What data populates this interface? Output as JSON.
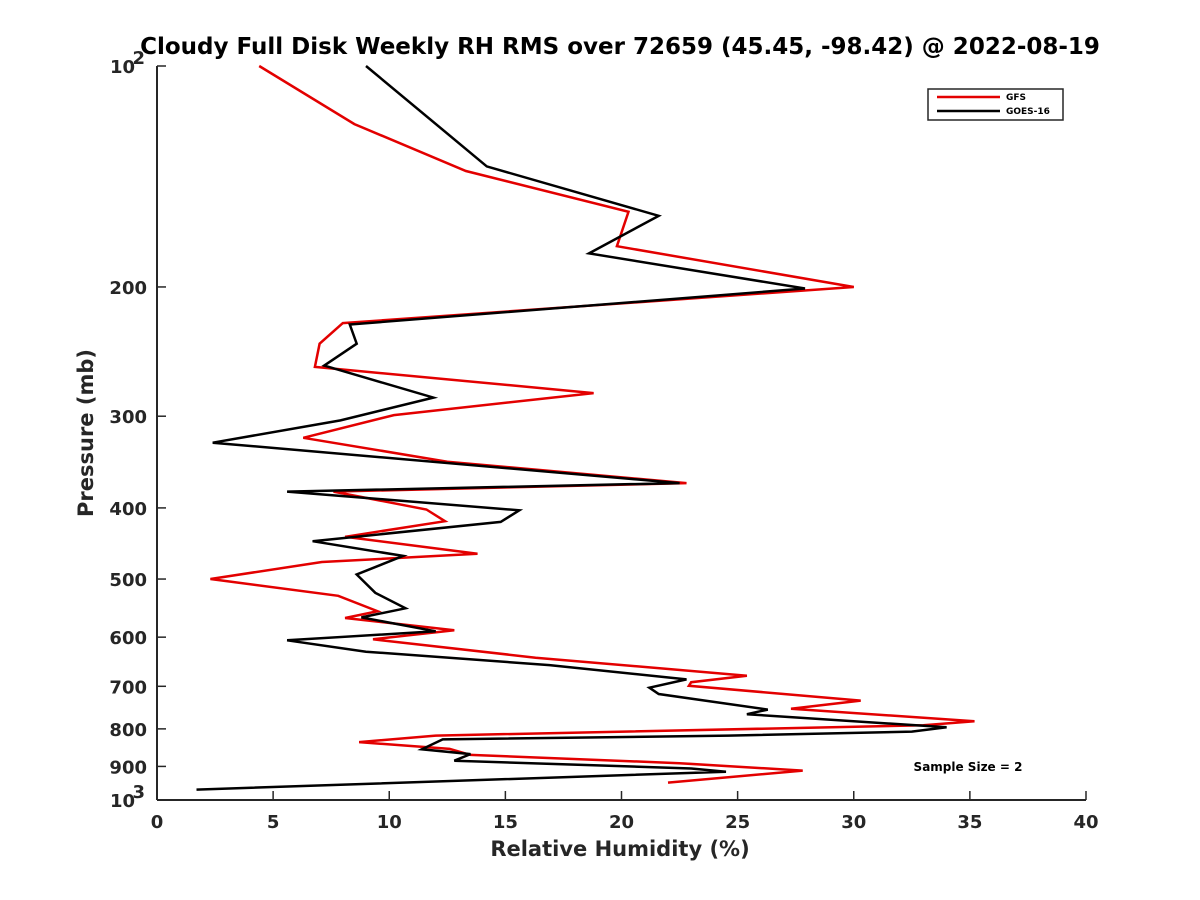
{
  "chart_data": {
    "type": "line",
    "title": "Cloudy Full Disk Weekly RH RMS over 72659 (45.45, -98.42) @ 2022-08-19",
    "xlabel": "Relative Humidity (%)",
    "ylabel": "Pressure (mb)",
    "xlim": [
      0,
      40
    ],
    "ylim": [
      100,
      1000
    ],
    "y_scale": "log",
    "y_reversed": true,
    "x_ticks": [
      "0",
      "5",
      "10",
      "15",
      "20",
      "25",
      "30",
      "35",
      "40"
    ],
    "y_ticks": [
      {
        "value": 100,
        "label": "10",
        "sup": "2"
      },
      {
        "value": 200,
        "label": "200",
        "sup": ""
      },
      {
        "value": 300,
        "label": "300",
        "sup": ""
      },
      {
        "value": 400,
        "label": "400",
        "sup": ""
      },
      {
        "value": 500,
        "label": "500",
        "sup": ""
      },
      {
        "value": 600,
        "label": "600",
        "sup": ""
      },
      {
        "value": 700,
        "label": "700",
        "sup": ""
      },
      {
        "value": 800,
        "label": "800",
        "sup": ""
      },
      {
        "value": 900,
        "label": "900",
        "sup": ""
      },
      {
        "value": 1000,
        "label": "10",
        "sup": "3"
      }
    ],
    "grid": false,
    "legend_position": "top-right",
    "annotation": "Sample Size = 2",
    "series": [
      {
        "name": "GFS",
        "color": "#e30000",
        "points": [
          [
            4.4,
            100
          ],
          [
            8.5,
            120
          ],
          [
            13.3,
            139
          ],
          [
            20.3,
            158
          ],
          [
            19.8,
            176
          ],
          [
            30.0,
            200
          ],
          [
            8.0,
            224
          ],
          [
            7.0,
            239
          ],
          [
            6.8,
            257
          ],
          [
            18.8,
            279
          ],
          [
            10.2,
            299
          ],
          [
            6.3,
            321
          ],
          [
            12.5,
            346
          ],
          [
            22.8,
            370
          ],
          [
            7.6,
            380
          ],
          [
            11.6,
            402
          ],
          [
            12.4,
            417
          ],
          [
            8.1,
            438
          ],
          [
            13.8,
            462
          ],
          [
            7.1,
            474
          ],
          [
            2.3,
            500
          ],
          [
            7.8,
            527
          ],
          [
            9.5,
            553
          ],
          [
            8.1,
            565
          ],
          [
            12.8,
            587
          ],
          [
            9.3,
            604
          ],
          [
            16.3,
            640
          ],
          [
            25.4,
            677
          ],
          [
            23.0,
            691
          ],
          [
            22.9,
            699
          ],
          [
            30.3,
            732
          ],
          [
            27.3,
            751
          ],
          [
            35.2,
            781
          ],
          [
            33.0,
            791
          ],
          [
            12.0,
            817
          ],
          [
            8.7,
            834
          ],
          [
            12.6,
            852
          ],
          [
            13.5,
            868
          ],
          [
            22.5,
            891
          ],
          [
            27.8,
            912
          ],
          [
            22.0,
            947
          ]
        ]
      },
      {
        "name": "GOES-16",
        "color": "#000000",
        "points": [
          [
            9.0,
            100
          ],
          [
            14.2,
            137
          ],
          [
            21.6,
            160
          ],
          [
            18.6,
            180
          ],
          [
            27.9,
            201
          ],
          [
            8.3,
            225
          ],
          [
            8.6,
            239
          ],
          [
            7.2,
            256
          ],
          [
            11.9,
            283
          ],
          [
            7.9,
            304
          ],
          [
            2.4,
            326
          ],
          [
            22.5,
            370
          ],
          [
            5.6,
            380
          ],
          [
            15.6,
            403
          ],
          [
            14.8,
            418
          ],
          [
            6.7,
            444
          ],
          [
            10.6,
            465
          ],
          [
            8.6,
            493
          ],
          [
            9.4,
            522
          ],
          [
            10.7,
            548
          ],
          [
            8.8,
            564
          ],
          [
            12.0,
            589
          ],
          [
            5.6,
            606
          ],
          [
            9.0,
            628
          ],
          [
            16.9,
            655
          ],
          [
            22.8,
            685
          ],
          [
            21.2,
            703
          ],
          [
            21.6,
            717
          ],
          [
            26.3,
            753
          ],
          [
            25.4,
            764
          ],
          [
            34.0,
            796
          ],
          [
            32.5,
            807
          ],
          [
            24.6,
            817
          ],
          [
            12.3,
            827
          ],
          [
            11.4,
            853
          ],
          [
            13.5,
            866
          ],
          [
            12.8,
            884
          ],
          [
            23.0,
            906
          ],
          [
            24.5,
            915
          ],
          [
            1.7,
            968
          ]
        ]
      }
    ]
  }
}
